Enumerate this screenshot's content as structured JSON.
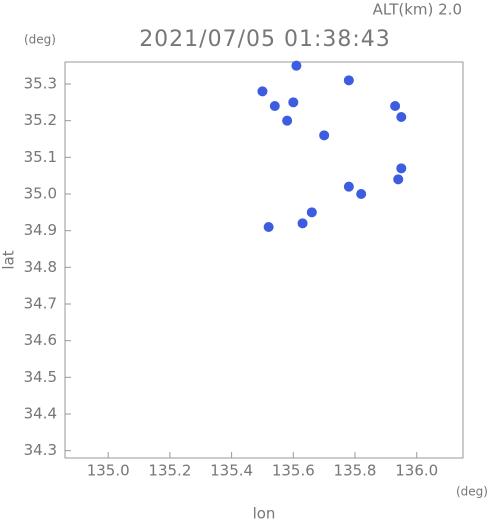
{
  "chart_data": {
    "type": "scatter",
    "title": "2021/07/05 01:38:43",
    "subtitle": "ALT(km) 2.0",
    "x_label": "lon",
    "y_label": "lat",
    "x_unit": "(deg)",
    "y_unit": "(deg)",
    "x": [
      135.61,
      135.5,
      135.54,
      135.6,
      135.58,
      135.78,
      135.7,
      135.93,
      135.95,
      135.78,
      135.82,
      135.95,
      135.94,
      135.66,
      135.63,
      135.52
    ],
    "y": [
      35.35,
      35.28,
      35.24,
      35.25,
      35.2,
      35.31,
      35.16,
      35.24,
      35.21,
      35.02,
      35.0,
      35.07,
      35.04,
      34.95,
      34.92,
      34.91
    ],
    "color": "#3d5ce0",
    "xlim": [
      134.86,
      136.15
    ],
    "ylim": [
      34.28,
      35.36
    ],
    "xticks": [
      {
        "value": 135.0,
        "label": "135.0"
      },
      135.2,
      135.4,
      135.6,
      135.8,
      {
        "value": 136.0,
        "label": "136.0"
      }
    ],
    "yticks": [
      34.3,
      34.4,
      34.5,
      34.6,
      34.7,
      34.8,
      34.9,
      {
        "value": 35.0,
        "label": "35.0"
      },
      35.1,
      35.2,
      35.3
    ]
  }
}
